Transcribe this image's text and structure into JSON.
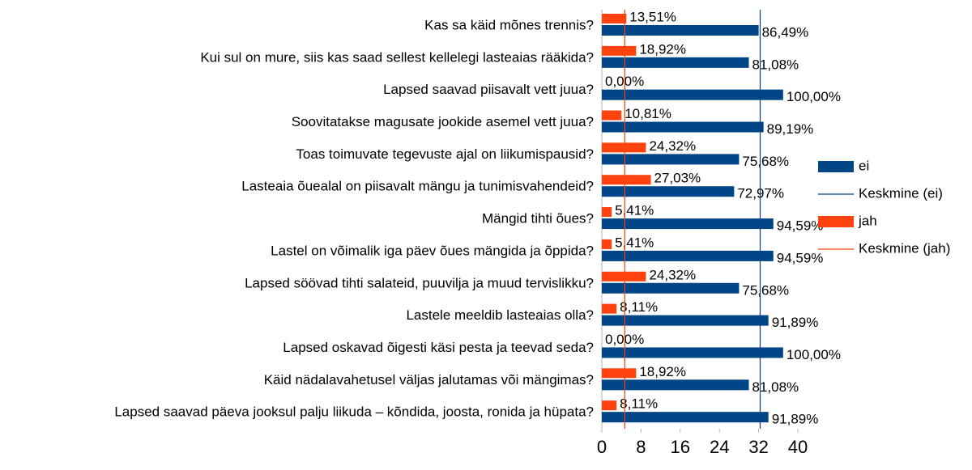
{
  "chart_data": {
    "type": "hbar",
    "categories": [
      "Kas sa käid mõnes trennis?",
      "Kui sul on mure, siis kas saad sellest kellelegi lasteaias rääkida?",
      "Lapsed saavad piisavalt vett juua?",
      "Soovitatakse magusate jookide asemel vett juua?",
      "Toas toimuvate tegevuste ajal on liikumispausid?",
      "Lasteaia õuealal on piisavalt mängu ja tunimisvahendeid?",
      "Mängid tihti õues?",
      "Lastel on võimalik iga päev õues mängida ja õppida?",
      "Lapsed söövad tihti salateid, puuvilja ja muud tervislikku?",
      "Lastele meeldib lasteaias olla?",
      "Lapsed oskavad õigesti käsi pesta ja teevad seda?",
      "Käid nädalavahetusel väljas jalutamas või mängimas?",
      "Lapsed saavad päeva jooksul palju liikuda – kõndida, joosta, ronida ja hüpata?"
    ],
    "series": [
      {
        "name": "ei",
        "color": "#004586",
        "values": [
          32,
          30,
          37,
          33,
          28,
          27,
          35,
          35,
          28,
          34,
          37,
          30,
          34
        ],
        "value_labels": [
          "86,49%",
          "81,08%",
          "100,00%",
          "89,19%",
          "75,68%",
          "72,97%",
          "94,59%",
          "94,59%",
          "75,68%",
          "91,89%",
          "100,00%",
          "81,08%",
          "91,89%"
        ]
      },
      {
        "name": "jah",
        "color": "#ff420e",
        "values": [
          5,
          7,
          0,
          4,
          9,
          10,
          2,
          2,
          9,
          3,
          0,
          7,
          3
        ],
        "value_labels": [
          "13,51%",
          "18,92%",
          "0,00%",
          "10,81%",
          "24,32%",
          "27,03%",
          "5,41%",
          "5,41%",
          "24,32%",
          "8,11%",
          "0,00%",
          "18,92%",
          "8,11%"
        ]
      }
    ],
    "averages": [
      {
        "name": "Keskmine (ei)",
        "color": "#004586",
        "value": 32.31
      },
      {
        "name": "Keskmine (jah)",
        "color": "#ff420e",
        "value": 4.69
      }
    ],
    "legend": "right",
    "xlim": [
      0,
      40
    ],
    "xticks": [
      0,
      8,
      16,
      24,
      32,
      40
    ]
  }
}
